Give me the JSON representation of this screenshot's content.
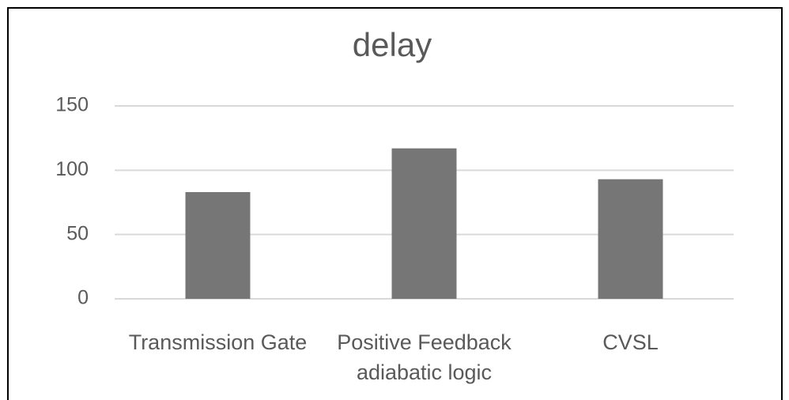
{
  "chart_data": {
    "type": "bar",
    "title": "delay",
    "categories": [
      "Transmission Gate",
      "Positive Feedback adiabatic logic",
      "CVSL"
    ],
    "values": [
      83,
      117,
      93
    ],
    "color": "#767676",
    "ylim": [
      0,
      150
    ],
    "yticks": [
      0,
      50,
      100,
      150
    ],
    "grid": true
  }
}
